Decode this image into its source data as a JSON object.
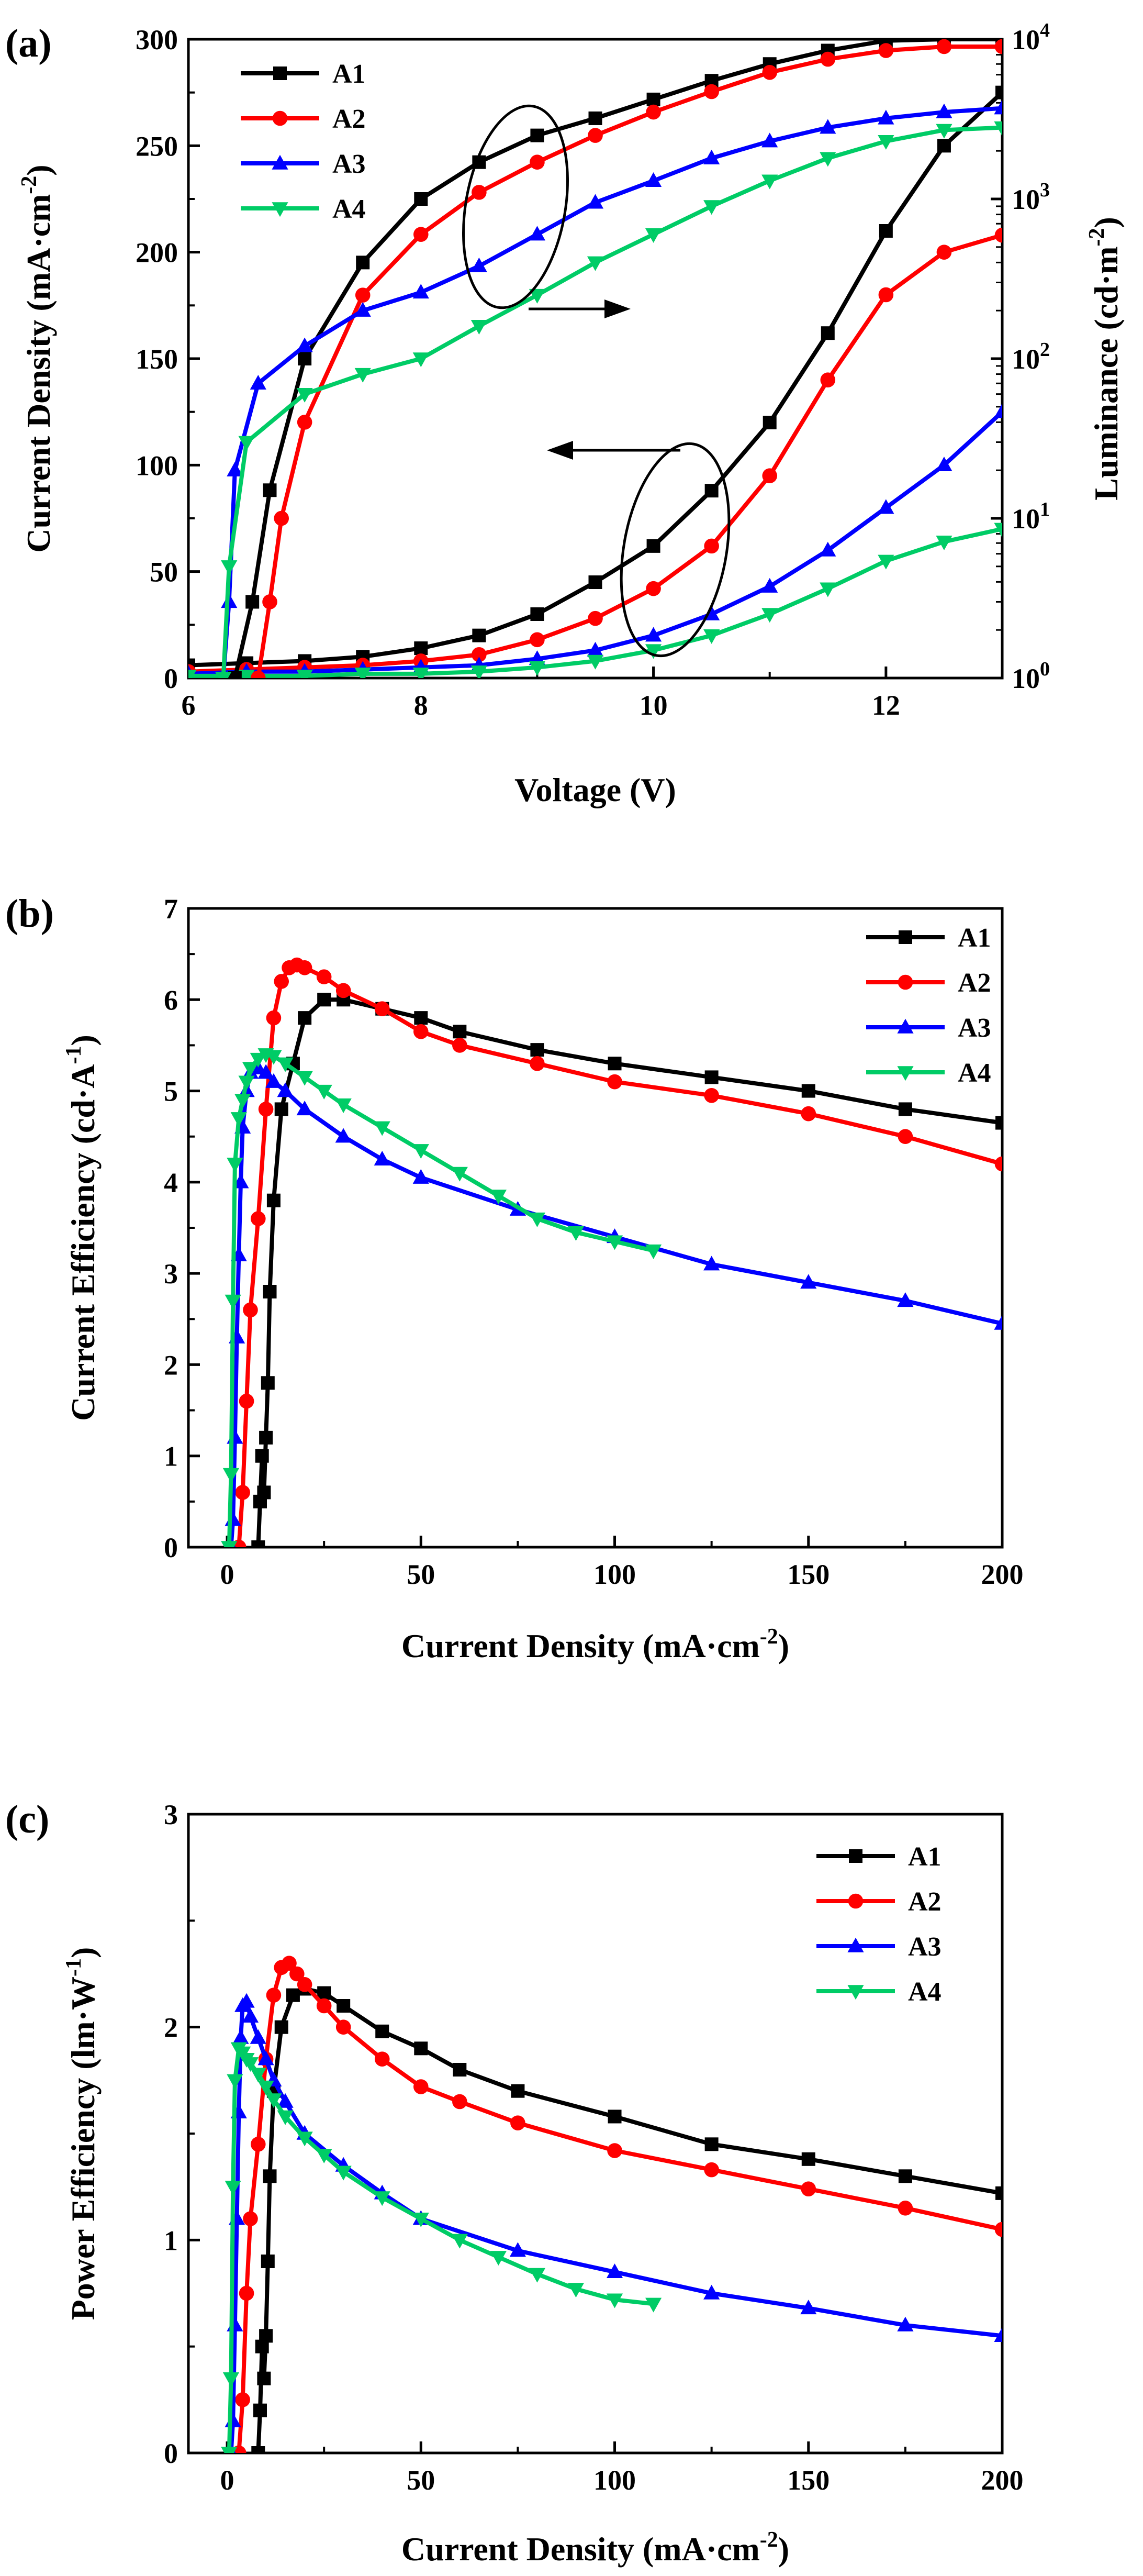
{
  "figure": {
    "panels": [
      {
        "label": "(a)"
      },
      {
        "label": "(b)"
      },
      {
        "label": "(c)"
      }
    ]
  },
  "series_colors": {
    "A1": "#000000",
    "A2": "#ff0000",
    "A3": "#0000ff",
    "A4": "#00cc66"
  },
  "series_markers": {
    "A1": "square",
    "A2": "circle",
    "A3": "triangle-up",
    "A4": "triangle-down"
  },
  "chart_data": [
    {
      "type": "line",
      "panel": "(a)",
      "xlabel": "Voltage (V)",
      "ylabel": "Current Density (mA·cm-2)",
      "y2label": "Luminance (cd·m-2)",
      "xlim": [
        6,
        13
      ],
      "ylim": [
        0,
        300
      ],
      "y2lim": [
        1,
        10000
      ],
      "y2scale": "log",
      "xticks": [
        "6",
        "8",
        "10",
        "12"
      ],
      "yticks": [
        "0",
        "50",
        "100",
        "150",
        "200",
        "250",
        "300"
      ],
      "y2ticks": [
        "100",
        "101",
        "102",
        "103",
        "104"
      ],
      "legend_position": "top-left",
      "legend": [
        "A1",
        "A2",
        "A3",
        "A4"
      ],
      "grid": false,
      "annotations": [
        "ellipse around luminance curves with arrow pointing right to luminance axis",
        "ellipse around current density curves with arrow pointing left to current density axis"
      ],
      "series": [
        {
          "name": "A1",
          "axis": "left",
          "x": [
            6.0,
            6.5,
            7.0,
            7.5,
            8.0,
            8.5,
            9.0,
            9.5,
            10.0,
            10.5,
            11.0,
            11.5,
            12.0,
            12.5,
            13.0
          ],
          "y": [
            6,
            7,
            8,
            10,
            14,
            20,
            30,
            45,
            62,
            88,
            120,
            162,
            210,
            250,
            275
          ]
        },
        {
          "name": "A2",
          "axis": "left",
          "x": [
            6.0,
            6.5,
            7.0,
            7.5,
            8.0,
            8.5,
            9.0,
            9.5,
            10.0,
            10.5,
            11.0,
            11.5,
            12.0,
            12.5,
            13.0
          ],
          "y": [
            3,
            4,
            5,
            6,
            8,
            11,
            18,
            28,
            42,
            62,
            95,
            140,
            180,
            200,
            208
          ]
        },
        {
          "name": "A3",
          "axis": "left",
          "x": [
            6.0,
            6.5,
            7.0,
            7.5,
            8.0,
            8.5,
            9.0,
            9.5,
            10.0,
            10.5,
            11.0,
            11.5,
            12.0,
            12.5,
            13.0
          ],
          "y": [
            2,
            3,
            3,
            4,
            5,
            6,
            9,
            13,
            20,
            30,
            43,
            60,
            80,
            100,
            125
          ]
        },
        {
          "name": "A4",
          "axis": "left",
          "x": [
            6.0,
            6.5,
            7.0,
            7.5,
            8.0,
            8.5,
            9.0,
            9.5,
            10.0,
            10.5,
            11.0,
            11.5,
            12.0,
            12.5,
            13.0
          ],
          "y": [
            1,
            1,
            1,
            2,
            2,
            3,
            5,
            8,
            13,
            20,
            30,
            42,
            55,
            64,
            70
          ]
        },
        {
          "name": "A1",
          "axis": "right",
          "x": [
            6.4,
            6.55,
            6.7,
            7.0,
            7.5,
            8.0,
            8.5,
            9.0,
            9.5,
            10.0,
            10.5,
            11.0,
            11.5,
            12.0,
            12.5,
            13.0
          ],
          "y": [
            1,
            3,
            15,
            100,
            400,
            1000,
            1700,
            2500,
            3200,
            4200,
            5500,
            7000,
            8500,
            9800,
            10000,
            10000
          ]
        },
        {
          "name": "A2",
          "axis": "right",
          "x": [
            6.6,
            6.7,
            6.8,
            7.0,
            7.5,
            8.0,
            8.5,
            9.0,
            9.5,
            10.0,
            10.5,
            11.0,
            11.5,
            12.0,
            12.5,
            13.0
          ],
          "y": [
            1,
            3,
            10,
            40,
            250,
            600,
            1100,
            1700,
            2500,
            3500,
            4700,
            6200,
            7500,
            8500,
            9000,
            9000
          ]
        },
        {
          "name": "A3",
          "axis": "right",
          "x": [
            6.3,
            6.35,
            6.4,
            6.6,
            7.0,
            7.5,
            8.0,
            8.5,
            9.0,
            9.5,
            10.0,
            10.5,
            11.0,
            11.5,
            12.0,
            12.5,
            13.0
          ],
          "y": [
            1,
            3,
            20,
            70,
            120,
            200,
            260,
            380,
            600,
            950,
            1300,
            1800,
            2300,
            2800,
            3200,
            3500,
            3700
          ]
        },
        {
          "name": "A4",
          "axis": "right",
          "x": [
            6.3,
            6.35,
            6.5,
            7.0,
            7.5,
            8.0,
            8.5,
            9.0,
            9.5,
            10.0,
            10.5,
            11.0,
            11.5,
            12.0,
            12.5,
            13.0
          ],
          "y": [
            1,
            5,
            30,
            60,
            80,
            100,
            160,
            250,
            400,
            600,
            900,
            1300,
            1800,
            2300,
            2700,
            2800
          ]
        }
      ]
    },
    {
      "type": "line",
      "panel": "(b)",
      "xlabel": "Current Density (mA·cm-2)",
      "ylabel": "Current Efficiency (cd·A-1)",
      "xlim": [
        -10,
        200
      ],
      "ylim": [
        0,
        7
      ],
      "xticks": [
        "0",
        "50",
        "100",
        "150",
        "200"
      ],
      "yticks": [
        "0",
        "1",
        "2",
        "3",
        "4",
        "5",
        "6",
        "7"
      ],
      "legend_position": "top-right",
      "legend": [
        "A1",
        "A2",
        "A3",
        "A4"
      ],
      "grid": false,
      "series": [
        {
          "name": "A1",
          "x": [
            8,
            8.5,
            9,
            9.5,
            10,
            10.5,
            11,
            12,
            14,
            17,
            20,
            25,
            30,
            40,
            50,
            60,
            80,
            100,
            125,
            150,
            175,
            200
          ],
          "y": [
            0,
            0.5,
            1.0,
            0.6,
            1.2,
            1.8,
            2.8,
            3.8,
            4.8,
            5.3,
            5.8,
            6.0,
            6.0,
            5.9,
            5.8,
            5.65,
            5.45,
            5.3,
            5.15,
            5.0,
            4.8,
            4.65
          ]
        },
        {
          "name": "A2",
          "x": [
            3,
            4,
            5,
            6,
            8,
            10,
            12,
            14,
            16,
            18,
            20,
            25,
            30,
            40,
            50,
            60,
            80,
            100,
            125,
            150,
            175,
            200
          ],
          "y": [
            0,
            0.6,
            1.6,
            2.6,
            3.6,
            4.8,
            5.8,
            6.2,
            6.35,
            6.38,
            6.35,
            6.25,
            6.1,
            5.9,
            5.65,
            5.5,
            5.3,
            5.1,
            4.95,
            4.75,
            4.5,
            4.2
          ]
        },
        {
          "name": "A3",
          "x": [
            1,
            1.5,
            2,
            2.5,
            3,
            3.5,
            4,
            5,
            6,
            8,
            10,
            12,
            15,
            20,
            30,
            40,
            50,
            75,
            100,
            125,
            150,
            175,
            200
          ],
          "y": [
            0,
            0.3,
            1.2,
            2.3,
            3.2,
            4.0,
            4.6,
            5.0,
            5.2,
            5.25,
            5.2,
            5.1,
            5.0,
            4.8,
            4.5,
            4.25,
            4.05,
            3.7,
            3.4,
            3.1,
            2.9,
            2.7,
            2.45
          ]
        },
        {
          "name": "A4",
          "x": [
            0.5,
            1,
            1.5,
            2,
            3,
            4,
            5,
            6,
            8,
            10,
            12,
            15,
            20,
            25,
            30,
            40,
            50,
            60,
            70,
            80,
            90,
            100,
            110
          ],
          "y": [
            0,
            0.8,
            2.7,
            4.2,
            4.7,
            4.9,
            5.1,
            5.25,
            5.35,
            5.4,
            5.38,
            5.3,
            5.15,
            5.0,
            4.85,
            4.6,
            4.35,
            4.1,
            3.85,
            3.6,
            3.45,
            3.35,
            3.25
          ]
        }
      ]
    },
    {
      "type": "line",
      "panel": "(c)",
      "xlabel": "Current Density (mA·cm-2)",
      "ylabel": "Power Efficiency (lm·W-1)",
      "xlim": [
        -10,
        200
      ],
      "ylim": [
        0,
        3
      ],
      "xticks": [
        "0",
        "50",
        "100",
        "150",
        "200"
      ],
      "yticks": [
        "0",
        "1",
        "2",
        "3"
      ],
      "legend_position": "top-right",
      "legend": [
        "A1",
        "A2",
        "A3",
        "A4"
      ],
      "grid": false,
      "series": [
        {
          "name": "A1",
          "x": [
            8,
            8.5,
            9,
            9.5,
            10,
            10.5,
            11,
            12,
            14,
            17,
            20,
            25,
            30,
            40,
            50,
            60,
            75,
            100,
            125,
            150,
            175,
            200
          ],
          "y": [
            0,
            0.2,
            0.5,
            0.35,
            0.55,
            0.9,
            1.3,
            1.7,
            2.0,
            2.15,
            2.18,
            2.16,
            2.1,
            1.98,
            1.9,
            1.8,
            1.7,
            1.58,
            1.45,
            1.38,
            1.3,
            1.22
          ]
        },
        {
          "name": "A2",
          "x": [
            3,
            4,
            5,
            6,
            8,
            10,
            12,
            14,
            16,
            18,
            20,
            25,
            30,
            40,
            50,
            60,
            75,
            100,
            125,
            150,
            175,
            200
          ],
          "y": [
            0,
            0.25,
            0.75,
            1.1,
            1.45,
            1.85,
            2.15,
            2.28,
            2.3,
            2.25,
            2.2,
            2.1,
            2.0,
            1.85,
            1.72,
            1.65,
            1.55,
            1.42,
            1.33,
            1.24,
            1.15,
            1.05
          ]
        },
        {
          "name": "A3",
          "x": [
            1,
            1.5,
            2,
            2.5,
            3,
            3.5,
            4,
            5,
            6,
            8,
            10,
            12,
            15,
            20,
            30,
            40,
            50,
            75,
            100,
            125,
            150,
            175,
            200
          ],
          "y": [
            0,
            0.15,
            0.6,
            1.1,
            1.6,
            1.95,
            2.1,
            2.12,
            2.05,
            1.95,
            1.85,
            1.75,
            1.65,
            1.5,
            1.35,
            1.22,
            1.1,
            0.95,
            0.85,
            0.75,
            0.68,
            0.6,
            0.55
          ]
        },
        {
          "name": "A4",
          "x": [
            0.5,
            1,
            1.5,
            2,
            3,
            4,
            5,
            6,
            8,
            10,
            12,
            15,
            20,
            25,
            30,
            40,
            50,
            60,
            70,
            80,
            90,
            100,
            110
          ],
          "y": [
            0,
            0.35,
            1.25,
            1.75,
            1.9,
            1.88,
            1.85,
            1.83,
            1.78,
            1.72,
            1.66,
            1.58,
            1.48,
            1.4,
            1.32,
            1.2,
            1.1,
            1.0,
            0.92,
            0.84,
            0.77,
            0.72,
            0.7
          ]
        }
      ]
    }
  ]
}
